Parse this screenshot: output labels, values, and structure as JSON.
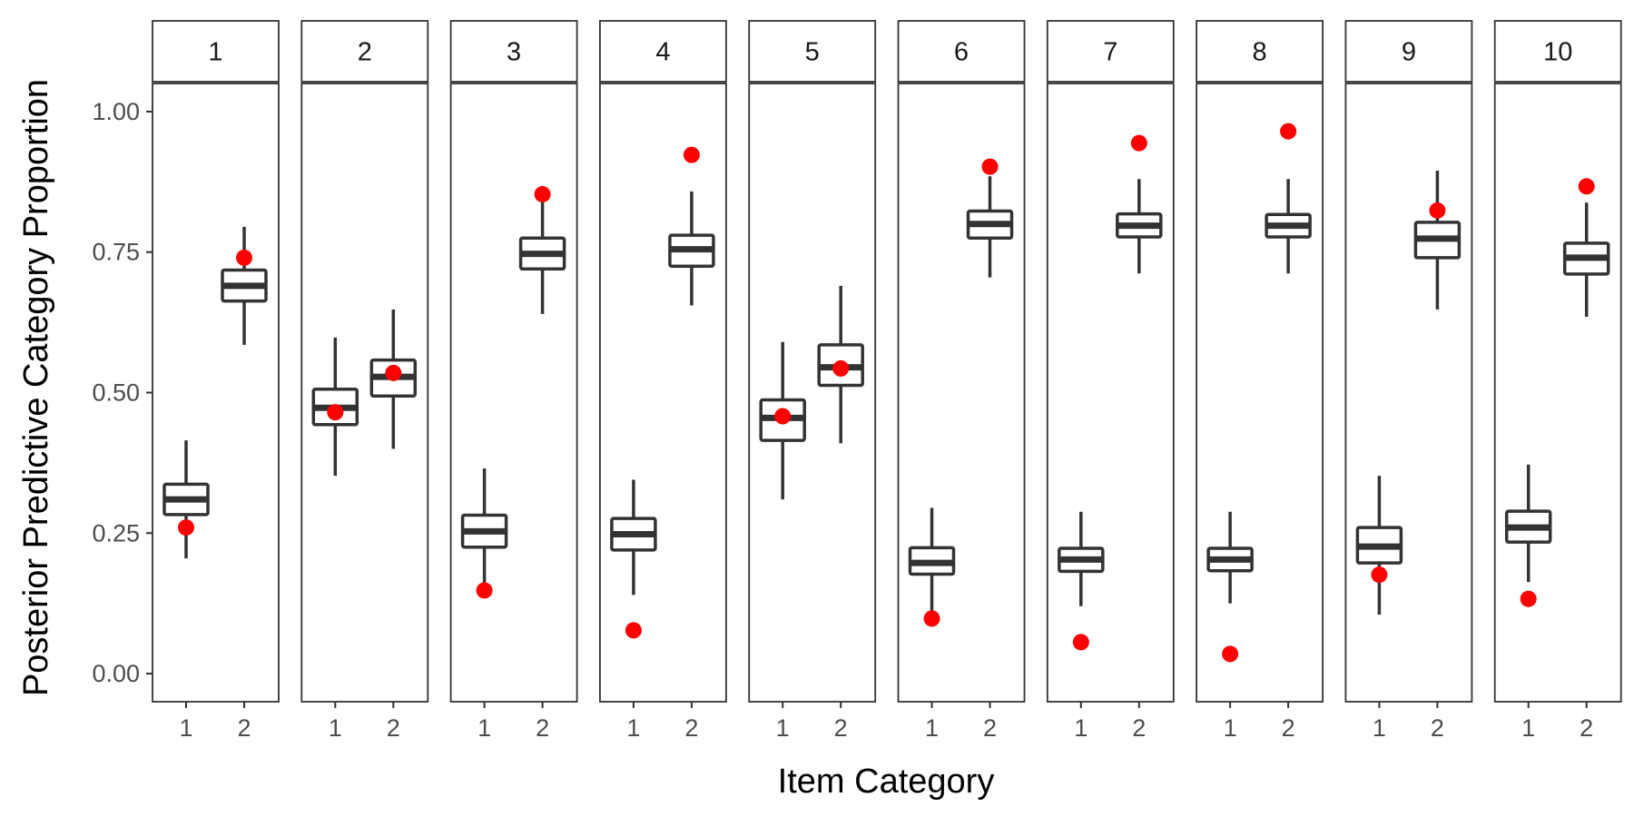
{
  "chart_data": {
    "type": "boxplot",
    "facet_type": "facet_wrap",
    "xlabel": "Item Category",
    "ylabel": "Posterior Predictive Category Proportion",
    "ylim": [
      -0.05,
      1.05
    ],
    "yticks": [
      0.0,
      0.25,
      0.5,
      0.75,
      1.0
    ],
    "ytick_labels": [
      "0.00",
      "0.25",
      "0.50",
      "0.75",
      "1.00"
    ],
    "categories": [
      "1",
      "2"
    ],
    "grid": false,
    "colors": {
      "box": "#333333",
      "observed_point": "#ff0000",
      "panel_border": "#333333",
      "strip_fill": "#ffffff"
    },
    "panels": [
      {
        "label": "1",
        "boxes": [
          {
            "category": "1",
            "min": 0.205,
            "q1": 0.283,
            "median": 0.31,
            "q3": 0.337,
            "max": 0.415,
            "observed": 0.26
          },
          {
            "category": "2",
            "min": 0.585,
            "q1": 0.663,
            "median": 0.69,
            "q3": 0.718,
            "max": 0.795,
            "observed": 0.74
          }
        ]
      },
      {
        "label": "2",
        "boxes": [
          {
            "category": "1",
            "min": 0.352,
            "q1": 0.443,
            "median": 0.473,
            "q3": 0.506,
            "max": 0.598,
            "observed": 0.465
          },
          {
            "category": "2",
            "min": 0.4,
            "q1": 0.494,
            "median": 0.528,
            "q3": 0.558,
            "max": 0.648,
            "observed": 0.535
          }
        ]
      },
      {
        "label": "3",
        "boxes": [
          {
            "category": "1",
            "min": 0.14,
            "q1": 0.225,
            "median": 0.253,
            "q3": 0.282,
            "max": 0.365,
            "observed": 0.148
          },
          {
            "category": "2",
            "min": 0.64,
            "q1": 0.72,
            "median": 0.747,
            "q3": 0.775,
            "max": 0.855,
            "observed": 0.853
          }
        ]
      },
      {
        "label": "4",
        "boxes": [
          {
            "category": "1",
            "min": 0.14,
            "q1": 0.22,
            "median": 0.248,
            "q3": 0.276,
            "max": 0.345,
            "observed": 0.077
          },
          {
            "category": "2",
            "min": 0.655,
            "q1": 0.725,
            "median": 0.755,
            "q3": 0.78,
            "max": 0.858,
            "observed": 0.923
          }
        ]
      },
      {
        "label": "5",
        "boxes": [
          {
            "category": "1",
            "min": 0.31,
            "q1": 0.415,
            "median": 0.455,
            "q3": 0.487,
            "max": 0.59,
            "observed": 0.458
          },
          {
            "category": "2",
            "min": 0.41,
            "q1": 0.513,
            "median": 0.545,
            "q3": 0.585,
            "max": 0.69,
            "observed": 0.543
          }
        ]
      },
      {
        "label": "6",
        "boxes": [
          {
            "category": "1",
            "min": 0.1,
            "q1": 0.177,
            "median": 0.197,
            "q3": 0.224,
            "max": 0.295,
            "observed": 0.098
          },
          {
            "category": "2",
            "min": 0.705,
            "q1": 0.775,
            "median": 0.8,
            "q3": 0.823,
            "max": 0.885,
            "observed": 0.902
          }
        ]
      },
      {
        "label": "7",
        "boxes": [
          {
            "category": "1",
            "min": 0.12,
            "q1": 0.182,
            "median": 0.203,
            "q3": 0.223,
            "max": 0.288,
            "observed": 0.056
          },
          {
            "category": "2",
            "min": 0.712,
            "q1": 0.777,
            "median": 0.797,
            "q3": 0.818,
            "max": 0.88,
            "observed": 0.944
          }
        ]
      },
      {
        "label": "8",
        "boxes": [
          {
            "category": "1",
            "min": 0.125,
            "q1": 0.183,
            "median": 0.203,
            "q3": 0.223,
            "max": 0.288,
            "observed": 0.035
          },
          {
            "category": "2",
            "min": 0.712,
            "q1": 0.777,
            "median": 0.797,
            "q3": 0.817,
            "max": 0.88,
            "observed": 0.965
          }
        ]
      },
      {
        "label": "9",
        "boxes": [
          {
            "category": "1",
            "min": 0.105,
            "q1": 0.197,
            "median": 0.226,
            "q3": 0.26,
            "max": 0.352,
            "observed": 0.176
          },
          {
            "category": "2",
            "min": 0.648,
            "q1": 0.74,
            "median": 0.774,
            "q3": 0.803,
            "max": 0.895,
            "observed": 0.824
          }
        ]
      },
      {
        "label": "10",
        "boxes": [
          {
            "category": "1",
            "min": 0.163,
            "q1": 0.234,
            "median": 0.26,
            "q3": 0.289,
            "max": 0.372,
            "observed": 0.133
          },
          {
            "category": "2",
            "min": 0.635,
            "q1": 0.711,
            "median": 0.74,
            "q3": 0.766,
            "max": 0.838,
            "observed": 0.867
          }
        ]
      }
    ]
  }
}
